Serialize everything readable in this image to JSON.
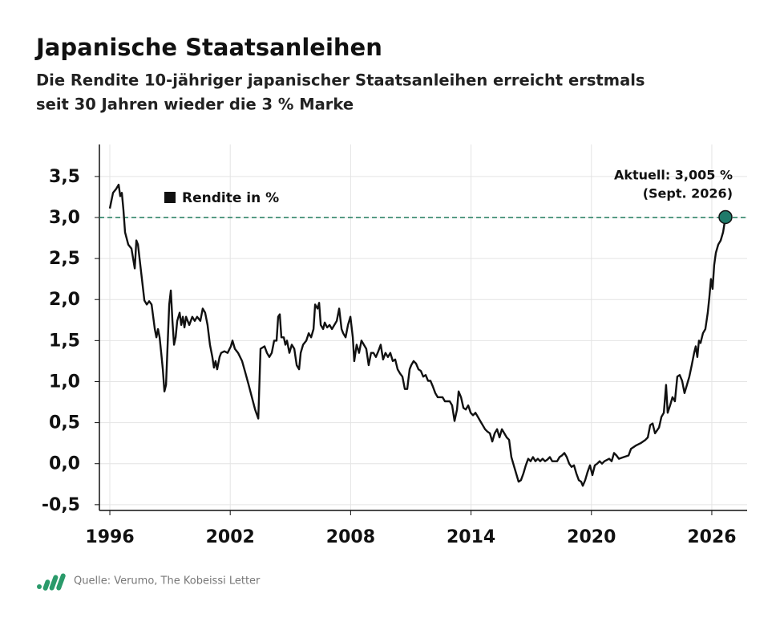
{
  "chart_data": {
    "type": "line",
    "title": "Japanische Staatsanleihen",
    "subtitle": [
      "Die Rendite 10-jähriger japanischer Staatsanleihen erreicht erstmals",
      "seit 30 Jahren wieder die 3 % Marke"
    ],
    "source": "Quelle: Verumo, The Kobeissi Letter",
    "annotation": [
      "Aktuell: 3,005 %",
      "(Sept. 2026)"
    ],
    "reference_line": {
      "value": 3,
      "color": "#1f7a5c"
    },
    "marker_color": "#1f7a6a",
    "xlim": [
      1995.48,
      2027.76
    ],
    "xticks": [
      1996,
      2002,
      2008,
      2014,
      2020,
      2026
    ],
    "ylim": [
      -0.57,
      3.89
    ],
    "yticks": [
      {
        "value": -0.5,
        "label": "-0,5"
      },
      {
        "value": 0,
        "label": "0,0"
      },
      {
        "value": 0.5,
        "label": "0,5"
      },
      {
        "value": 1,
        "label": "1,0"
      },
      {
        "value": 1.5,
        "label": "1,5"
      },
      {
        "value": 2,
        "label": "2,0"
      },
      {
        "value": 2.5,
        "label": "2,5"
      },
      {
        "value": 3,
        "label": "3,0"
      },
      {
        "value": 3.5,
        "label": "3,5"
      }
    ],
    "grid": true,
    "legend": "upper left",
    "x": [
      1996.0,
      1996.16,
      1996.32,
      1996.44,
      1996.52,
      1996.6,
      1996.68,
      1996.76,
      1996.92,
      1997.08,
      1997.24,
      1997.32,
      1997.4,
      1997.56,
      1997.72,
      1997.84,
      1997.96,
      1998.08,
      1998.16,
      1998.24,
      1998.32,
      1998.4,
      1998.48,
      1998.56,
      1998.64,
      1998.72,
      1998.8,
      1998.88,
      1998.96,
      1999.04,
      1999.12,
      1999.2,
      1999.28,
      1999.36,
      1999.48,
      1999.56,
      1999.64,
      1999.72,
      1999.8,
      1999.96,
      2000.11,
      2000.23,
      2000.35,
      2000.51,
      2000.63,
      2000.75,
      2000.87,
      2000.99,
      2001.11,
      2001.19,
      2001.27,
      2001.35,
      2001.47,
      2001.55,
      2001.71,
      2001.87,
      2002.03,
      2002.11,
      2002.23,
      2002.39,
      2002.59,
      2002.75,
      2002.92,
      2003.08,
      2003.24,
      2003.4,
      2003.51,
      2003.71,
      2003.83,
      2003.95,
      2004.07,
      2004.19,
      2004.31,
      2004.39,
      2004.47,
      2004.55,
      2004.67,
      2004.75,
      2004.83,
      2004.95,
      2005.07,
      2005.19,
      2005.31,
      2005.43,
      2005.51,
      2005.63,
      2005.79,
      2005.91,
      2006.03,
      2006.15,
      2006.23,
      2006.35,
      2006.43,
      2006.51,
      2006.63,
      2006.71,
      2006.83,
      2006.95,
      2007.07,
      2007.19,
      2007.31,
      2007.43,
      2007.55,
      2007.63,
      2007.75,
      2007.87,
      2007.99,
      2008.11,
      2008.18,
      2008.3,
      2008.42,
      2008.54,
      2008.66,
      2008.78,
      2008.9,
      2009.02,
      2009.14,
      2009.26,
      2009.38,
      2009.5,
      2009.62,
      2009.74,
      2009.86,
      2009.98,
      2010.1,
      2010.22,
      2010.34,
      2010.46,
      2010.58,
      2010.7,
      2010.82,
      2010.94,
      2011.02,
      2011.14,
      2011.26,
      2011.38,
      2011.5,
      2011.62,
      2011.74,
      2011.86,
      2011.98,
      2012.1,
      2012.22,
      2012.34,
      2012.58,
      2012.7,
      2012.94,
      2013.06,
      2013.18,
      2013.3,
      2013.38,
      2013.5,
      2013.62,
      2013.74,
      2013.86,
      2013.98,
      2014.1,
      2014.22,
      2014.34,
      2014.46,
      2014.58,
      2014.7,
      2014.82,
      2014.94,
      2015.06,
      2015.18,
      2015.3,
      2015.42,
      2015.54,
      2015.66,
      2015.78,
      2015.9,
      2016.01,
      2016.13,
      2016.25,
      2016.37,
      2016.49,
      2016.61,
      2016.73,
      2016.85,
      2016.97,
      2017.09,
      2017.21,
      2017.33,
      2017.45,
      2017.57,
      2017.69,
      2017.81,
      2017.93,
      2018.05,
      2018.17,
      2018.29,
      2018.41,
      2018.53,
      2018.65,
      2018.77,
      2018.89,
      2019.01,
      2019.13,
      2019.25,
      2019.37,
      2019.49,
      2019.57,
      2019.69,
      2019.81,
      2019.93,
      2020.05,
      2020.17,
      2020.29,
      2020.41,
      2020.53,
      2020.65,
      2020.89,
      2021.01,
      2021.13,
      2021.25,
      2021.37,
      2021.61,
      2021.85,
      2021.97,
      2022.21,
      2022.45,
      2022.69,
      2022.81,
      2022.93,
      2023.05,
      2023.17,
      2023.37,
      2023.49,
      2023.61,
      2023.72,
      2023.8,
      2023.92,
      2024.04,
      2024.16,
      2024.28,
      2024.4,
      2024.52,
      2024.64,
      2024.76,
      2024.88,
      2025.0,
      2025.12,
      2025.2,
      2025.28,
      2025.36,
      2025.44,
      2025.56,
      2025.68,
      2025.8,
      2025.88,
      2025.96,
      2026.04,
      2026.12,
      2026.2,
      2026.32,
      2026.44,
      2026.56,
      2026.68
    ],
    "series": [
      {
        "name": "Rendite in %",
        "color": "#111111",
        "values": [
          3.11,
          3.3,
          3.35,
          3.4,
          3.26,
          3.3,
          3.09,
          2.82,
          2.67,
          2.62,
          2.38,
          2.72,
          2.67,
          2.33,
          1.99,
          1.94,
          1.98,
          1.94,
          1.79,
          1.64,
          1.54,
          1.64,
          1.54,
          1.35,
          1.15,
          0.88,
          0.96,
          1.45,
          1.94,
          2.11,
          1.74,
          1.45,
          1.54,
          1.74,
          1.84,
          1.69,
          1.79,
          1.66,
          1.79,
          1.69,
          1.79,
          1.74,
          1.79,
          1.74,
          1.89,
          1.84,
          1.69,
          1.45,
          1.3,
          1.17,
          1.25,
          1.15,
          1.3,
          1.35,
          1.37,
          1.35,
          1.43,
          1.5,
          1.4,
          1.35,
          1.25,
          1.11,
          0.96,
          0.81,
          0.66,
          0.55,
          1.4,
          1.43,
          1.35,
          1.3,
          1.35,
          1.5,
          1.5,
          1.79,
          1.82,
          1.54,
          1.54,
          1.45,
          1.5,
          1.35,
          1.45,
          1.4,
          1.2,
          1.15,
          1.35,
          1.45,
          1.5,
          1.59,
          1.54,
          1.64,
          1.94,
          1.89,
          1.96,
          1.69,
          1.64,
          1.72,
          1.66,
          1.69,
          1.64,
          1.69,
          1.74,
          1.89,
          1.64,
          1.59,
          1.54,
          1.69,
          1.79,
          1.54,
          1.25,
          1.45,
          1.35,
          1.5,
          1.45,
          1.4,
          1.2,
          1.35,
          1.35,
          1.3,
          1.37,
          1.45,
          1.27,
          1.35,
          1.3,
          1.35,
          1.25,
          1.27,
          1.15,
          1.1,
          1.06,
          0.91,
          0.91,
          1.15,
          1.2,
          1.25,
          1.22,
          1.15,
          1.13,
          1.06,
          1.08,
          1.01,
          1.01,
          0.94,
          0.86,
          0.81,
          0.81,
          0.76,
          0.76,
          0.71,
          0.52,
          0.66,
          0.88,
          0.81,
          0.68,
          0.66,
          0.71,
          0.62,
          0.59,
          0.62,
          0.57,
          0.52,
          0.47,
          0.42,
          0.39,
          0.37,
          0.27,
          0.37,
          0.42,
          0.32,
          0.42,
          0.37,
          0.32,
          0.29,
          0.08,
          -0.02,
          -0.12,
          -0.22,
          -0.2,
          -0.12,
          -0.02,
          0.06,
          0.03,
          0.08,
          0.03,
          0.06,
          0.03,
          0.06,
          0.03,
          0.05,
          0.08,
          0.03,
          0.03,
          0.03,
          0.08,
          0.1,
          0.13,
          0.08,
          0.0,
          -0.04,
          -0.02,
          -0.12,
          -0.2,
          -0.22,
          -0.27,
          -0.2,
          -0.1,
          -0.02,
          -0.14,
          -0.02,
          0.0,
          0.03,
          0.0,
          0.03,
          0.06,
          0.03,
          0.13,
          0.1,
          0.06,
          0.08,
          0.1,
          0.18,
          0.22,
          0.25,
          0.29,
          0.32,
          0.47,
          0.49,
          0.37,
          0.44,
          0.57,
          0.62,
          0.96,
          0.62,
          0.71,
          0.81,
          0.76,
          1.06,
          1.08,
          1.01,
          0.86,
          0.96,
          1.06,
          1.2,
          1.35,
          1.43,
          1.3,
          1.5,
          1.47,
          1.59,
          1.64,
          1.84,
          2.03,
          2.25,
          2.13,
          2.42,
          2.57,
          2.67,
          2.72,
          2.82,
          3.005
        ]
      }
    ]
  }
}
